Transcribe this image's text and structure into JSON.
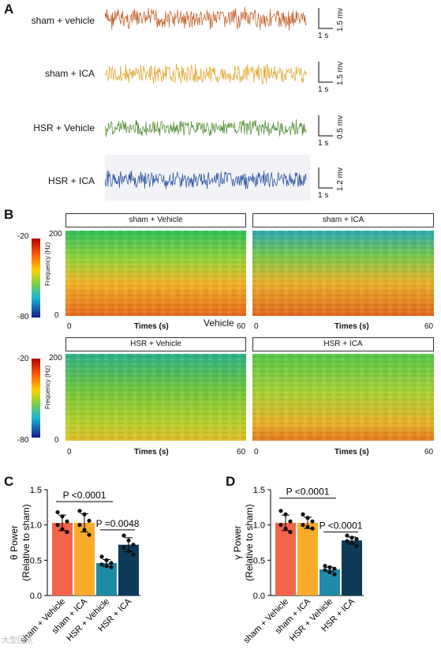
{
  "panel_labels": {
    "a": "A",
    "b": "B",
    "c": "C",
    "d": "D"
  },
  "traces": [
    {
      "label": "sham + vehicle",
      "color": "#c0561c",
      "scale_v": "1.5 mv",
      "scale_t": "1 s"
    },
    {
      "label": "sham + ICA",
      "color": "#e0a326",
      "scale_v": "1.5 mv",
      "scale_t": "1 s"
    },
    {
      "label": "HSR + Vehicle",
      "color": "#4b8a2c",
      "scale_v": "0.5 mv",
      "scale_t": "1 s"
    },
    {
      "label": "HSR + ICA",
      "color": "#1f4a9c",
      "scale_v": "1.2 mv",
      "scale_t": "1 s"
    }
  ],
  "spectrograms": {
    "colorbar_max": "-20",
    "colorbar_min": "-80",
    "ylabel": "Frequency (Hz)",
    "y_top": "200",
    "y_bottom": "0",
    "x_left": "0",
    "x_right": "60",
    "xlabel": "Times (s)",
    "stray_label": "Vehicle",
    "panels": [
      {
        "title": "sham + Vehicle"
      },
      {
        "title": "sham + ICA"
      },
      {
        "title": "HSR + Vehicle"
      },
      {
        "title": "HSR + ICA"
      }
    ]
  },
  "chart_data": [
    {
      "type": "bar",
      "panel": "C",
      "ylabel_line1": "θ Power",
      "ylabel_line2": "(Relative to sham)",
      "categories": [
        "sham + Vehicle",
        "sham + ICA",
        "HSR + Vehicle",
        "HSR + ICA"
      ],
      "values": [
        1.03,
        1.03,
        0.46,
        0.72
      ],
      "errors": [
        0.11,
        0.13,
        0.05,
        0.1
      ],
      "colors": [
        "#f2654a",
        "#fbab2b",
        "#1f8aa8",
        "#0d3a56"
      ],
      "points": [
        [
          1.18,
          1.12,
          1.05,
          1.0,
          0.94,
          0.9
        ],
        [
          1.2,
          1.15,
          1.06,
          1.0,
          0.93,
          0.86
        ],
        [
          0.55,
          0.5,
          0.46,
          0.44,
          0.42,
          0.4
        ],
        [
          0.85,
          0.78,
          0.72,
          0.68,
          0.63,
          0.58
        ]
      ],
      "ylim": [
        0,
        1.5
      ],
      "yticks": [
        "0.0",
        "0.5",
        "1.0",
        "1.5"
      ],
      "annotations": [
        {
          "text": "P <0.0001",
          "from": 0,
          "to": 2,
          "y": 1.33
        },
        {
          "text": "P =0.0048",
          "from": 2,
          "to": 3,
          "y": 0.93
        }
      ]
    },
    {
      "type": "bar",
      "panel": "D",
      "ylabel_line1": "γ Power",
      "ylabel_line2": "(Relative to sham)",
      "categories": [
        "sham + Vehicle",
        "sham + ICA",
        "HSR + Vehicle",
        "HSR + ICA"
      ],
      "values": [
        1.03,
        1.03,
        0.37,
        0.78
      ],
      "errors": [
        0.11,
        0.08,
        0.03,
        0.05
      ],
      "colors": [
        "#f2654a",
        "#fbab2b",
        "#1f8aa8",
        "#0d3a56"
      ],
      "points": [
        [
          1.2,
          1.15,
          1.05,
          1.0,
          0.95,
          0.9
        ],
        [
          1.15,
          1.1,
          1.05,
          1.0,
          0.97,
          0.95
        ],
        [
          0.42,
          0.4,
          0.38,
          0.36,
          0.33,
          0.3
        ],
        [
          0.85,
          0.82,
          0.8,
          0.77,
          0.74,
          0.7
        ]
      ],
      "ylim": [
        0,
        1.5
      ],
      "yticks": [
        "0.0",
        "0.5",
        "1.0",
        "1.5"
      ],
      "annotations": [
        {
          "text": "P <0.0001",
          "from": 0,
          "to": 2,
          "y": 1.38
        },
        {
          "text": "P <0.0001",
          "from": 2,
          "to": 3,
          "y": 0.9
        }
      ]
    }
  ],
  "watermark": "大型团队"
}
